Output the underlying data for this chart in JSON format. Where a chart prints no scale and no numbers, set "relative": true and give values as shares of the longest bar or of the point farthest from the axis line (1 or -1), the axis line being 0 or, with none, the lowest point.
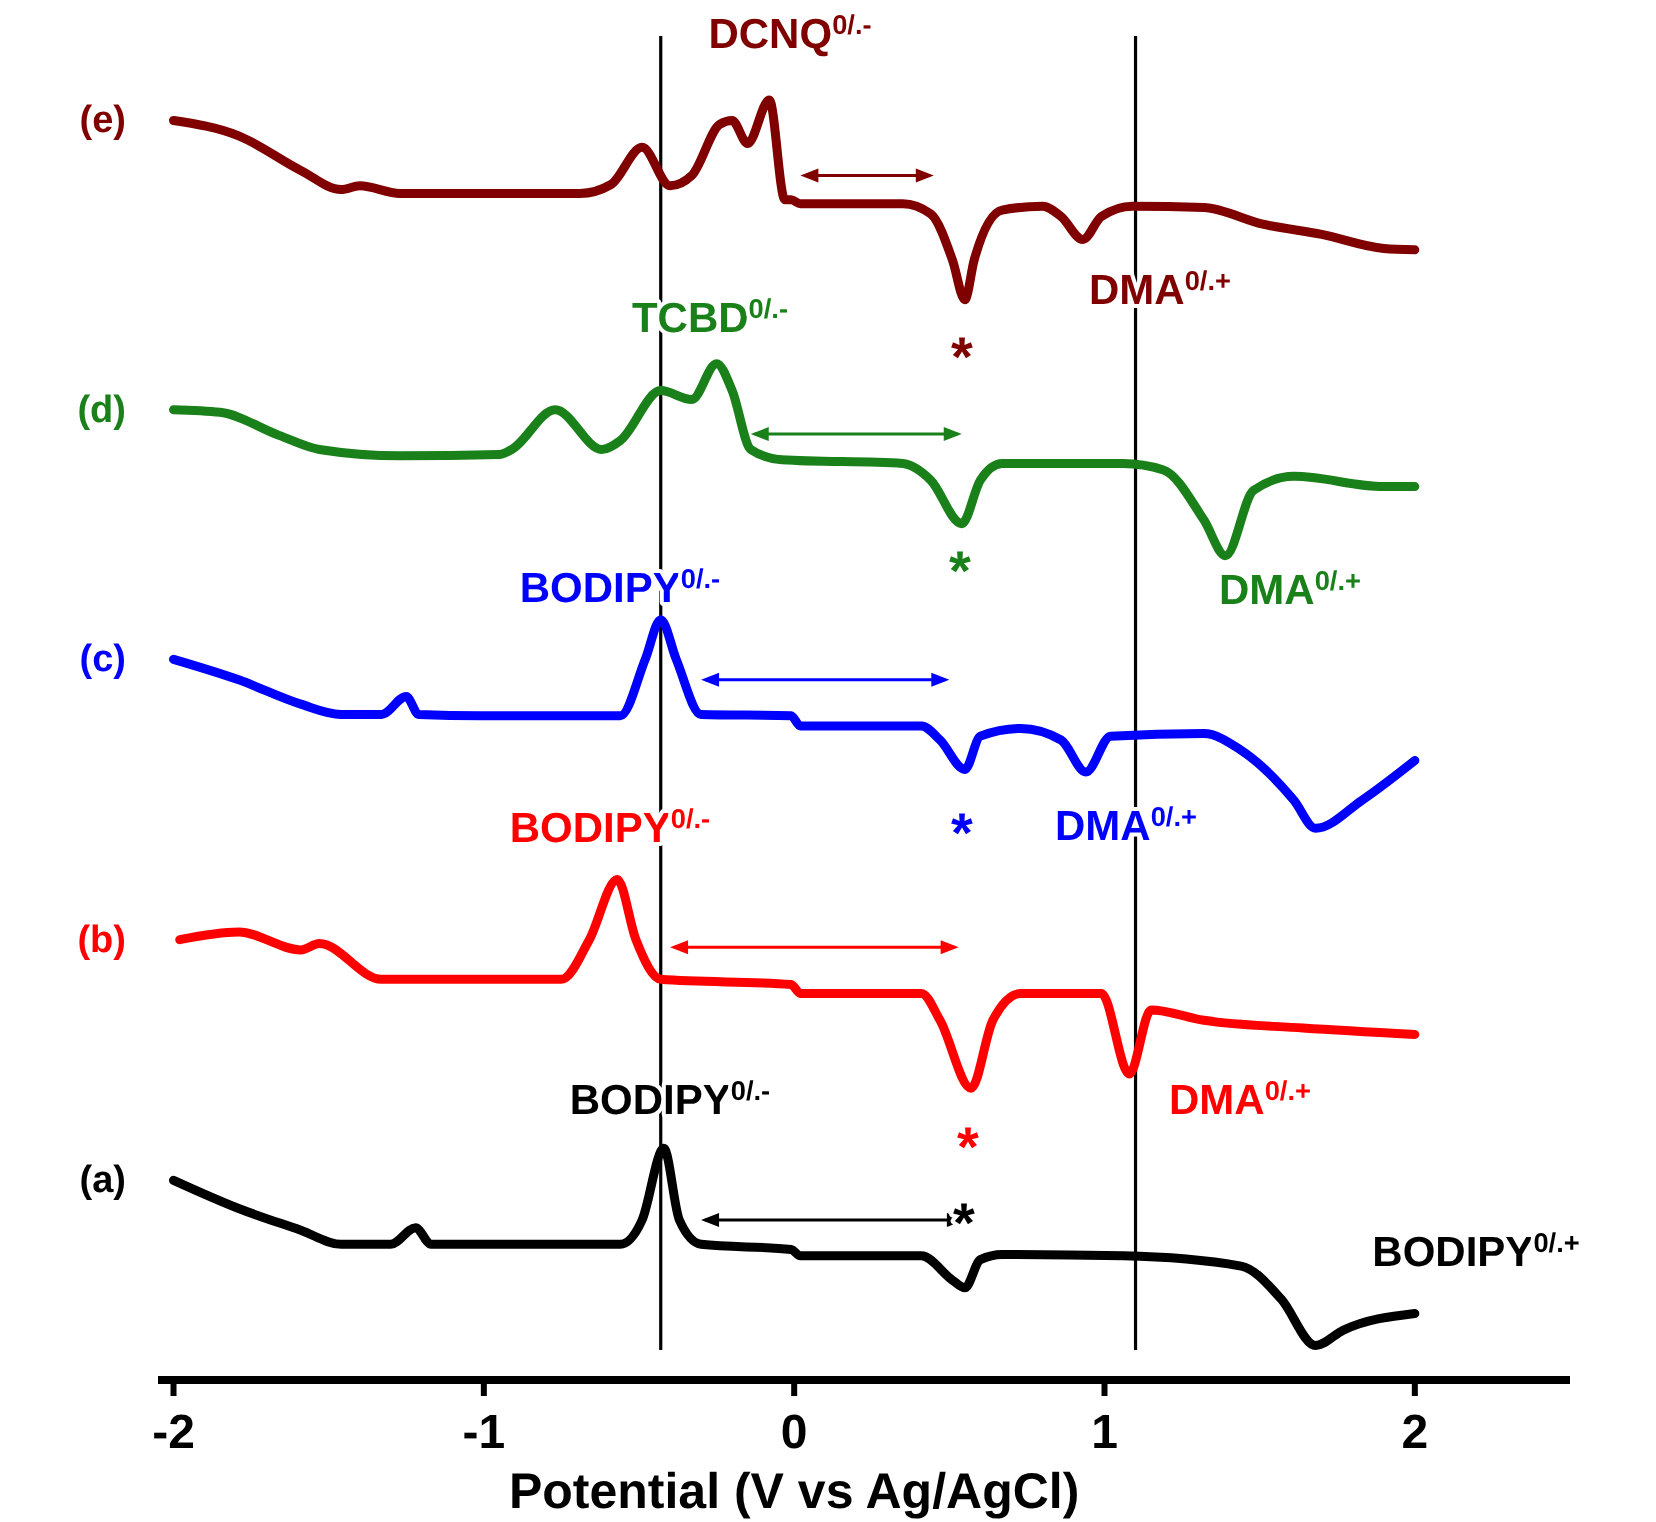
{
  "chart_data": {
    "type": "line",
    "relative": true,
    "xlabel": "Potential (V vs Ag/AgCl)",
    "xlim": [
      -2.05,
      2.5
    ],
    "xticks": [
      -2,
      -1,
      0,
      1,
      2
    ],
    "tick_labels": "x",
    "grid": false,
    "legend": false,
    "marker": "none",
    "line_style": "solid",
    "series": [
      {
        "name": "(a)",
        "color": "#000000",
        "x": [
          -2.0,
          -1.79,
          -1.59,
          -1.46,
          -1.3,
          -1.22,
          -1.17,
          -1.01,
          -0.56,
          -0.49,
          -0.42,
          -0.37,
          -0.3,
          -0.01,
          0.02,
          0.41,
          0.51,
          0.55,
          0.6,
          0.67,
          1.06,
          1.44,
          1.57,
          1.68,
          1.77,
          2.0
        ],
        "values": [
          0.156,
          0.134,
          0.117,
          0.106,
          0.106,
          0.119,
          0.106,
          0.106,
          0.106,
          0.125,
          0.181,
          0.125,
          0.106,
          0.102,
          0.097,
          0.097,
          0.078,
          0.072,
          0.094,
          0.098,
          0.097,
          0.089,
          0.063,
          0.027,
          0.039,
          0.052
        ]
      },
      {
        "name": "(b)",
        "color": "#ff0000",
        "x": [
          -1.98,
          -1.79,
          -1.59,
          -1.53,
          -1.33,
          -0.75,
          -0.66,
          -0.57,
          -0.51,
          -0.43,
          -0.01,
          0.02,
          0.41,
          0.47,
          0.57,
          0.64,
          0.73,
          0.99,
          1.08,
          1.15,
          1.32,
          1.64,
          2.0
        ],
        "values": [
          0.344,
          0.35,
          0.336,
          0.341,
          0.313,
          0.313,
          0.344,
          0.391,
          0.344,
          0.313,
          0.309,
          0.302,
          0.302,
          0.281,
          0.228,
          0.281,
          0.302,
          0.302,
          0.239,
          0.289,
          0.281,
          0.275,
          0.27
        ]
      },
      {
        "name": "(c)",
        "color": "#0000ff",
        "x": [
          -2.0,
          -1.79,
          -1.59,
          -1.46,
          -1.33,
          -1.25,
          -1.21,
          -1.01,
          -0.56,
          -0.48,
          -0.43,
          -0.38,
          -0.3,
          -0.01,
          0.02,
          0.41,
          0.47,
          0.55,
          0.6,
          0.73,
          0.86,
          0.94,
          1.02,
          1.32,
          1.44,
          1.61,
          1.68,
          1.83,
          2.0
        ],
        "values": [
          0.563,
          0.547,
          0.528,
          0.52,
          0.52,
          0.534,
          0.52,
          0.519,
          0.519,
          0.563,
          0.594,
          0.563,
          0.52,
          0.519,
          0.511,
          0.511,
          0.5,
          0.477,
          0.503,
          0.509,
          0.5,
          0.475,
          0.503,
          0.505,
          0.492,
          0.453,
          0.431,
          0.453,
          0.484
        ]
      },
      {
        "name": "(d)",
        "color": "#1a801a",
        "x": [
          -2.0,
          -1.85,
          -1.66,
          -1.53,
          -1.27,
          -0.95,
          -0.91,
          -0.77,
          -0.62,
          -0.56,
          -0.43,
          -0.33,
          -0.25,
          -0.2,
          -0.14,
          -0.04,
          0.35,
          0.44,
          0.54,
          0.6,
          0.67,
          1.06,
          1.19,
          1.32,
          1.39,
          1.48,
          1.61,
          1.9,
          2.0
        ],
        "values": [
          0.758,
          0.756,
          0.738,
          0.727,
          0.722,
          0.723,
          0.727,
          0.758,
          0.727,
          0.734,
          0.773,
          0.766,
          0.794,
          0.773,
          0.727,
          0.719,
          0.716,
          0.703,
          0.669,
          0.703,
          0.716,
          0.716,
          0.711,
          0.672,
          0.644,
          0.695,
          0.706,
          0.698,
          0.698
        ]
      },
      {
        "name": "(e)",
        "color": "#800000",
        "x": [
          -2.0,
          -1.79,
          -1.59,
          -1.46,
          -1.4,
          -1.27,
          -1.01,
          -0.69,
          -0.59,
          -0.49,
          -0.4,
          -0.33,
          -0.24,
          -0.2,
          -0.15,
          -0.08,
          -0.03,
          -0.01,
          0.02,
          0.35,
          0.44,
          0.51,
          0.55,
          0.58,
          0.67,
          0.8,
          0.86,
          0.93,
          0.99,
          1.09,
          1.32,
          1.51,
          1.7,
          1.9,
          2.0
        ],
        "values": [
          0.984,
          0.972,
          0.945,
          0.93,
          0.933,
          0.927,
          0.927,
          0.927,
          0.934,
          0.963,
          0.933,
          0.941,
          0.981,
          0.984,
          0.966,
          1.0,
          0.922,
          0.922,
          0.919,
          0.919,
          0.911,
          0.875,
          0.844,
          0.875,
          0.914,
          0.917,
          0.909,
          0.891,
          0.909,
          0.917,
          0.916,
          0.903,
          0.895,
          0.884,
          0.883
        ]
      }
    ],
    "ref_lines": [
      {
        "axis": "x",
        "value": -0.43,
        "color": "#000000"
      },
      {
        "axis": "x",
        "value": 1.1,
        "color": "#000000"
      }
    ],
    "annotations": [
      "DCNQ$^{0/.-}$",
      "*",
      "DMA$^{0/.+}$",
      "TCBD$^{0/.-}$",
      "*",
      "DMA$^{0/.+}$",
      "BODIPY$^{0/.-}$",
      "*",
      "DMA$^{0/.+}$",
      "BODIPY$^{0/.-}$",
      "*",
      "DMA$^{0/.+}$",
      "BODIPY$^{0/.-}$",
      "*",
      "BODIPY$^{0/.+}$"
    ]
  }
}
